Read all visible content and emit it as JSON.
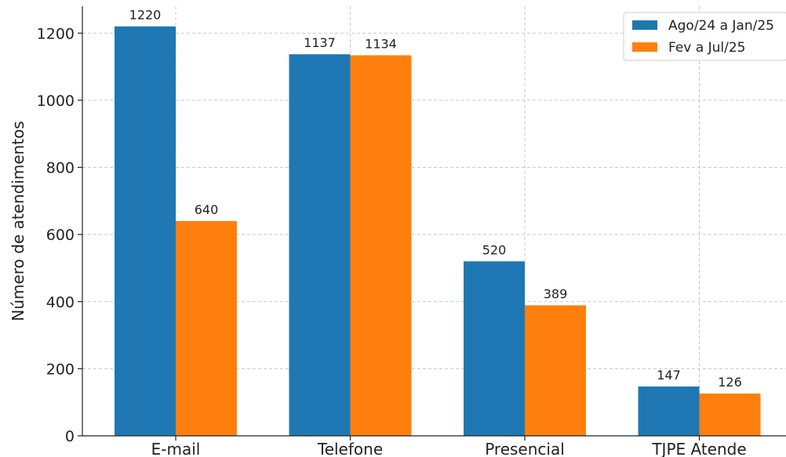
{
  "chart_data": {
    "type": "bar",
    "title": "",
    "xlabel": "",
    "ylabel": "Número de atendimentos",
    "ylim": [
      0,
      1280
    ],
    "yticks": [
      0,
      200,
      400,
      600,
      800,
      1000,
      1200
    ],
    "grid": true,
    "legend_position": "top-right",
    "categories": [
      "E-mail",
      "Telefone",
      "Presencial",
      "TJPE Atende"
    ],
    "series": [
      {
        "name": "Ago/24 a Jan/25",
        "color": "#1f77b4",
        "values": [
          1220,
          1137,
          520,
          147
        ]
      },
      {
        "name": "Fev a Jul/25",
        "color": "#ff7f0e",
        "values": [
          640,
          1134,
          389,
          126
        ]
      }
    ]
  }
}
